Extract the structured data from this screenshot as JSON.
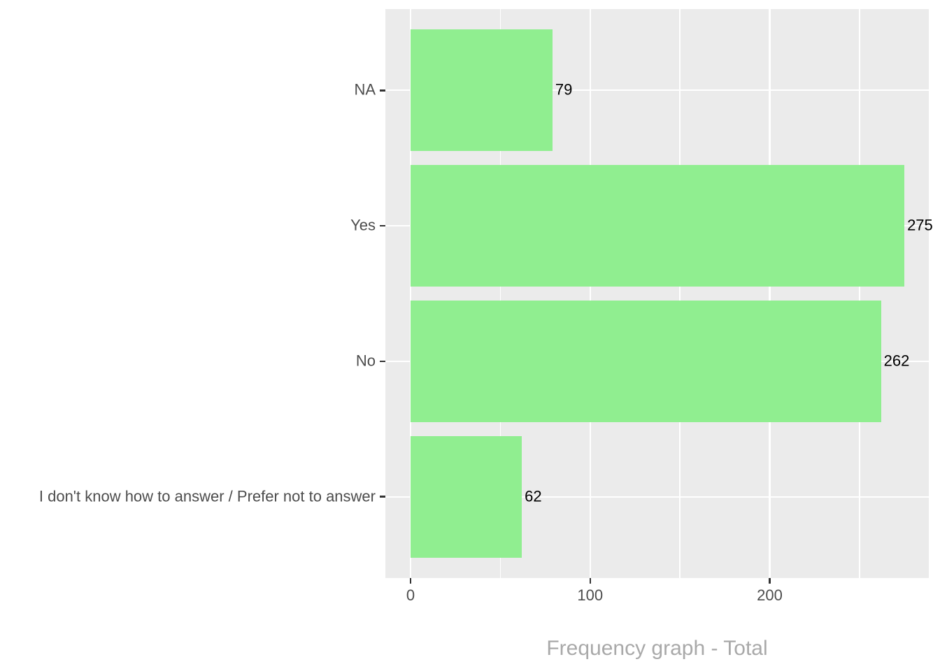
{
  "chart_data": {
    "type": "bar",
    "orientation": "horizontal",
    "title": "Frequency graph - Total",
    "title_position": "bottom-center",
    "xlabel": "Frequency graph - Total",
    "ylabel": "",
    "categories": [
      "NA",
      "Yes",
      "No",
      "I don't know how to answer / Prefer not to answer"
    ],
    "values": [
      79,
      275,
      262,
      62
    ],
    "bar_labels": [
      "79",
      "275",
      "262",
      "62"
    ],
    "x_ticks": [
      0,
      100,
      200
    ],
    "x_tick_labels": [
      "0",
      "100",
      "200"
    ],
    "x_minor_gridlines": [
      50,
      150,
      250
    ],
    "xlim": [
      0,
      289
    ],
    "grid": "major-and-minor-white-on-grey-panel",
    "legend": false,
    "colors": {
      "bar": "#90EE90",
      "panel_background": "#EBEBEB",
      "gridline": "#FFFFFF",
      "axis_text": "#4D4D4D",
      "tick_mark": "#333333",
      "bar_label": "#000000",
      "title": "#A9A9A9",
      "page_background": "#FFFFFF"
    }
  }
}
